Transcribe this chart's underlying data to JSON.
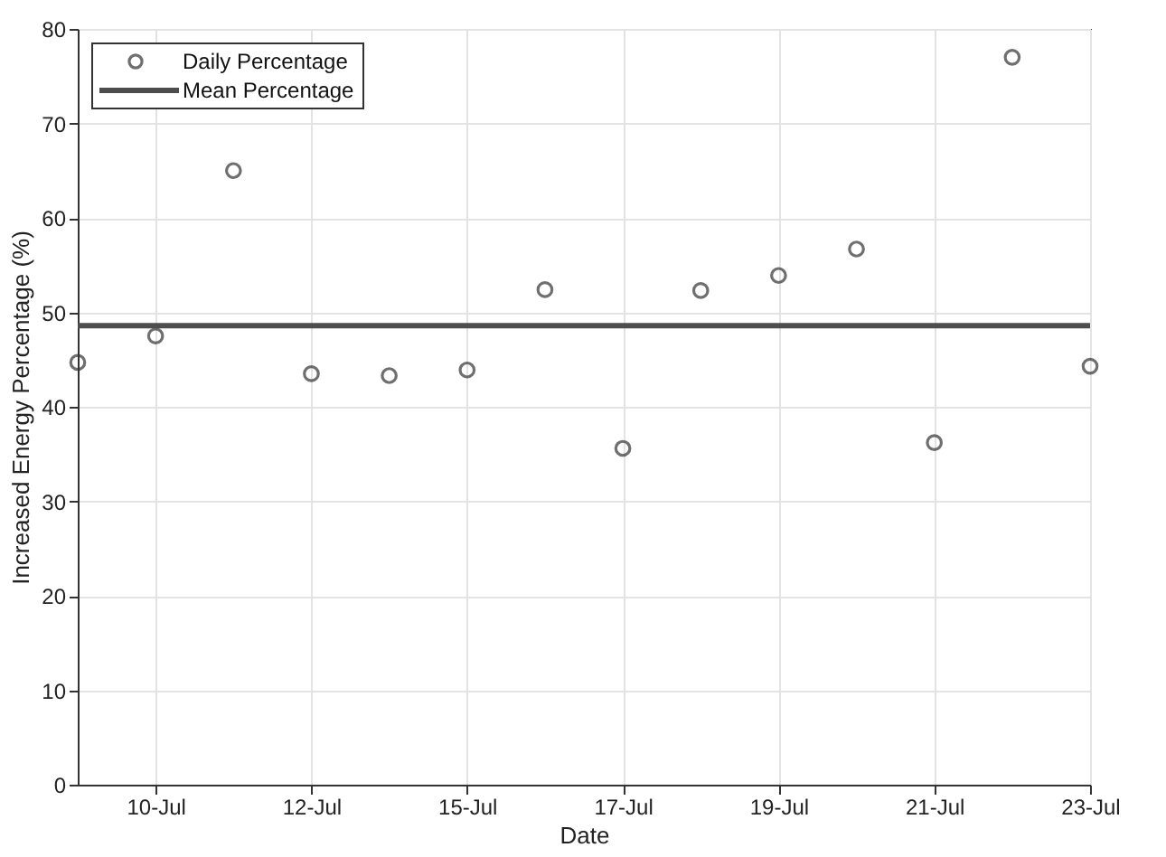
{
  "chart_data": {
    "type": "scatter",
    "xlabel": "Date",
    "ylabel": "Increased Energy Percentage (%)",
    "categories": [
      null,
      "10-Jul",
      null,
      "12-Jul",
      null,
      "15-Jul",
      null,
      "17-Jul",
      null,
      "19-Jul",
      null,
      "21-Jul",
      null,
      "23-Jul"
    ],
    "series": [
      {
        "name": "Daily Percentage",
        "color": "#333333",
        "values": [
          44.7,
          47.5,
          65.0,
          43.5,
          43.3,
          43.9,
          52.4,
          35.6,
          52.3,
          53.9,
          56.7,
          36.2,
          77.0,
          44.3
        ]
      }
    ],
    "ref_lines": [
      {
        "axis": "y",
        "value": 48.6,
        "label": "Mean Percentage",
        "color": "#4d4d4d"
      }
    ],
    "ylim": [
      0,
      80
    ],
    "yticks": [
      0,
      10,
      20,
      30,
      40,
      50,
      60,
      70,
      80
    ],
    "grid": true,
    "legend": "top left",
    "marker": "circle"
  }
}
